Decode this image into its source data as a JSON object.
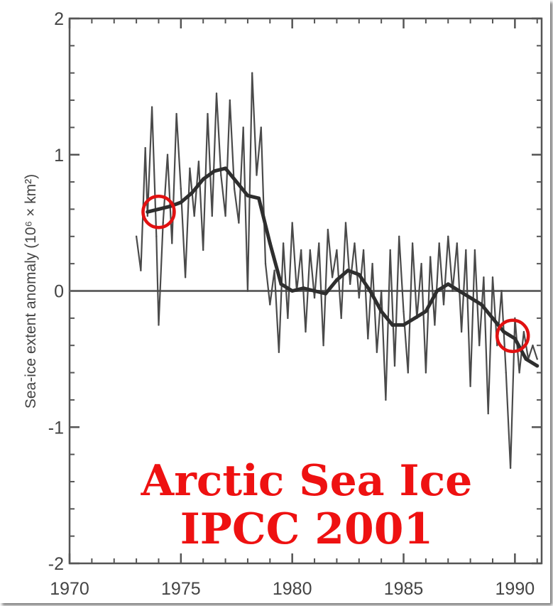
{
  "chart_data": {
    "type": "line",
    "title": "",
    "xlabel": "",
    "ylabel": "Sea-ice extent anomaly (10⁶ × km²)",
    "xlim": [
      1970,
      1991.2
    ],
    "ylim": [
      -2,
      2
    ],
    "x_ticks": [
      "1970",
      "1975",
      "1980",
      "1985",
      "1990"
    ],
    "y_ticks": [
      "2",
      "1",
      "0",
      "-1",
      "-2"
    ],
    "grid": false,
    "zero_line": true,
    "series": [
      {
        "style": "thin-monthly",
        "x": [
          1973.0,
          1973.2,
          1973.4,
          1973.5,
          1973.7,
          1973.9,
          1974.0,
          1974.2,
          1974.4,
          1974.6,
          1974.8,
          1975.0,
          1975.2,
          1975.4,
          1975.6,
          1975.8,
          1976.0,
          1976.2,
          1976.4,
          1976.6,
          1976.8,
          1977.0,
          1977.2,
          1977.4,
          1977.6,
          1977.8,
          1978.0,
          1978.2,
          1978.4,
          1978.6,
          1978.8,
          1979.0,
          1979.2,
          1979.4,
          1979.6,
          1979.8,
          1980.0,
          1980.2,
          1980.4,
          1980.6,
          1980.8,
          1981.0,
          1981.2,
          1981.4,
          1981.6,
          1981.8,
          1982.0,
          1982.2,
          1982.4,
          1982.6,
          1982.8,
          1983.0,
          1983.2,
          1983.4,
          1983.6,
          1983.8,
          1984.0,
          1984.2,
          1984.4,
          1984.6,
          1984.8,
          1985.0,
          1985.2,
          1985.4,
          1985.6,
          1985.8,
          1986.0,
          1986.2,
          1986.4,
          1986.6,
          1986.8,
          1987.0,
          1987.2,
          1987.4,
          1987.6,
          1987.8,
          1988.0,
          1988.2,
          1988.4,
          1988.6,
          1988.8,
          1989.0,
          1989.2,
          1989.4,
          1989.6,
          1989.8,
          1990.0,
          1990.2,
          1990.4,
          1990.6,
          1990.8,
          1991.0
        ],
        "values": [
          0.4,
          0.15,
          1.05,
          0.55,
          1.35,
          0.4,
          -0.25,
          0.5,
          1.0,
          0.35,
          1.3,
          0.75,
          0.1,
          0.9,
          0.55,
          0.95,
          0.3,
          1.3,
          0.55,
          1.45,
          0.85,
          0.55,
          1.4,
          0.75,
          0.5,
          1.2,
          0.0,
          1.6,
          0.85,
          1.2,
          0.2,
          -0.1,
          0.15,
          -0.45,
          0.35,
          -0.2,
          0.5,
          0.0,
          0.3,
          -0.3,
          0.3,
          -0.05,
          0.35,
          -0.4,
          0.45,
          0.1,
          0.3,
          -0.2,
          0.5,
          0.05,
          0.35,
          -0.05,
          0.3,
          -0.35,
          0.2,
          -0.45,
          0.0,
          -0.8,
          0.3,
          -0.55,
          0.4,
          -0.15,
          -0.6,
          0.35,
          -0.2,
          0.2,
          -0.6,
          0.25,
          -0.25,
          0.35,
          -0.1,
          0.4,
          0.0,
          0.35,
          -0.3,
          0.3,
          -0.7,
          0.3,
          -0.4,
          0.1,
          -0.9,
          0.1,
          -0.4,
          0.0,
          -0.6,
          -1.3,
          -0.2,
          -0.6,
          -0.3,
          -0.5,
          -0.4,
          -0.5
        ]
      },
      {
        "style": "thick-smoothed",
        "x": [
          1973.5,
          1974.0,
          1974.5,
          1975.0,
          1975.5,
          1976.0,
          1976.5,
          1977.0,
          1977.5,
          1978.0,
          1978.5,
          1979.0,
          1979.5,
          1980.0,
          1980.5,
          1981.0,
          1981.5,
          1982.0,
          1982.5,
          1983.0,
          1983.5,
          1984.0,
          1984.5,
          1985.0,
          1985.5,
          1986.0,
          1986.5,
          1987.0,
          1987.5,
          1988.0,
          1988.5,
          1989.0,
          1989.5,
          1990.0,
          1990.5,
          1991.0
        ],
        "values": [
          0.58,
          0.6,
          0.62,
          0.65,
          0.72,
          0.82,
          0.88,
          0.9,
          0.8,
          0.7,
          0.68,
          0.35,
          0.05,
          0.0,
          0.02,
          0.0,
          -0.02,
          0.08,
          0.15,
          0.12,
          0.0,
          -0.15,
          -0.25,
          -0.25,
          -0.2,
          -0.15,
          0.0,
          0.05,
          0.0,
          -0.05,
          -0.1,
          -0.2,
          -0.3,
          -0.35,
          -0.5,
          -0.55
        ]
      }
    ],
    "annotations": [
      {
        "type": "circle",
        "x": 1974.0,
        "y": 0.58,
        "color": "#e11111"
      },
      {
        "type": "circle",
        "x": 1989.9,
        "y": -0.33,
        "color": "#e11111"
      }
    ]
  },
  "overlay_text": {
    "line1": "Arctic Sea Ice",
    "line2": "IPCC 2001",
    "color": "#ee1111"
  },
  "colors": {
    "axis": "#555555",
    "series": "#3a3a3a",
    "highlight": "#e11111"
  }
}
